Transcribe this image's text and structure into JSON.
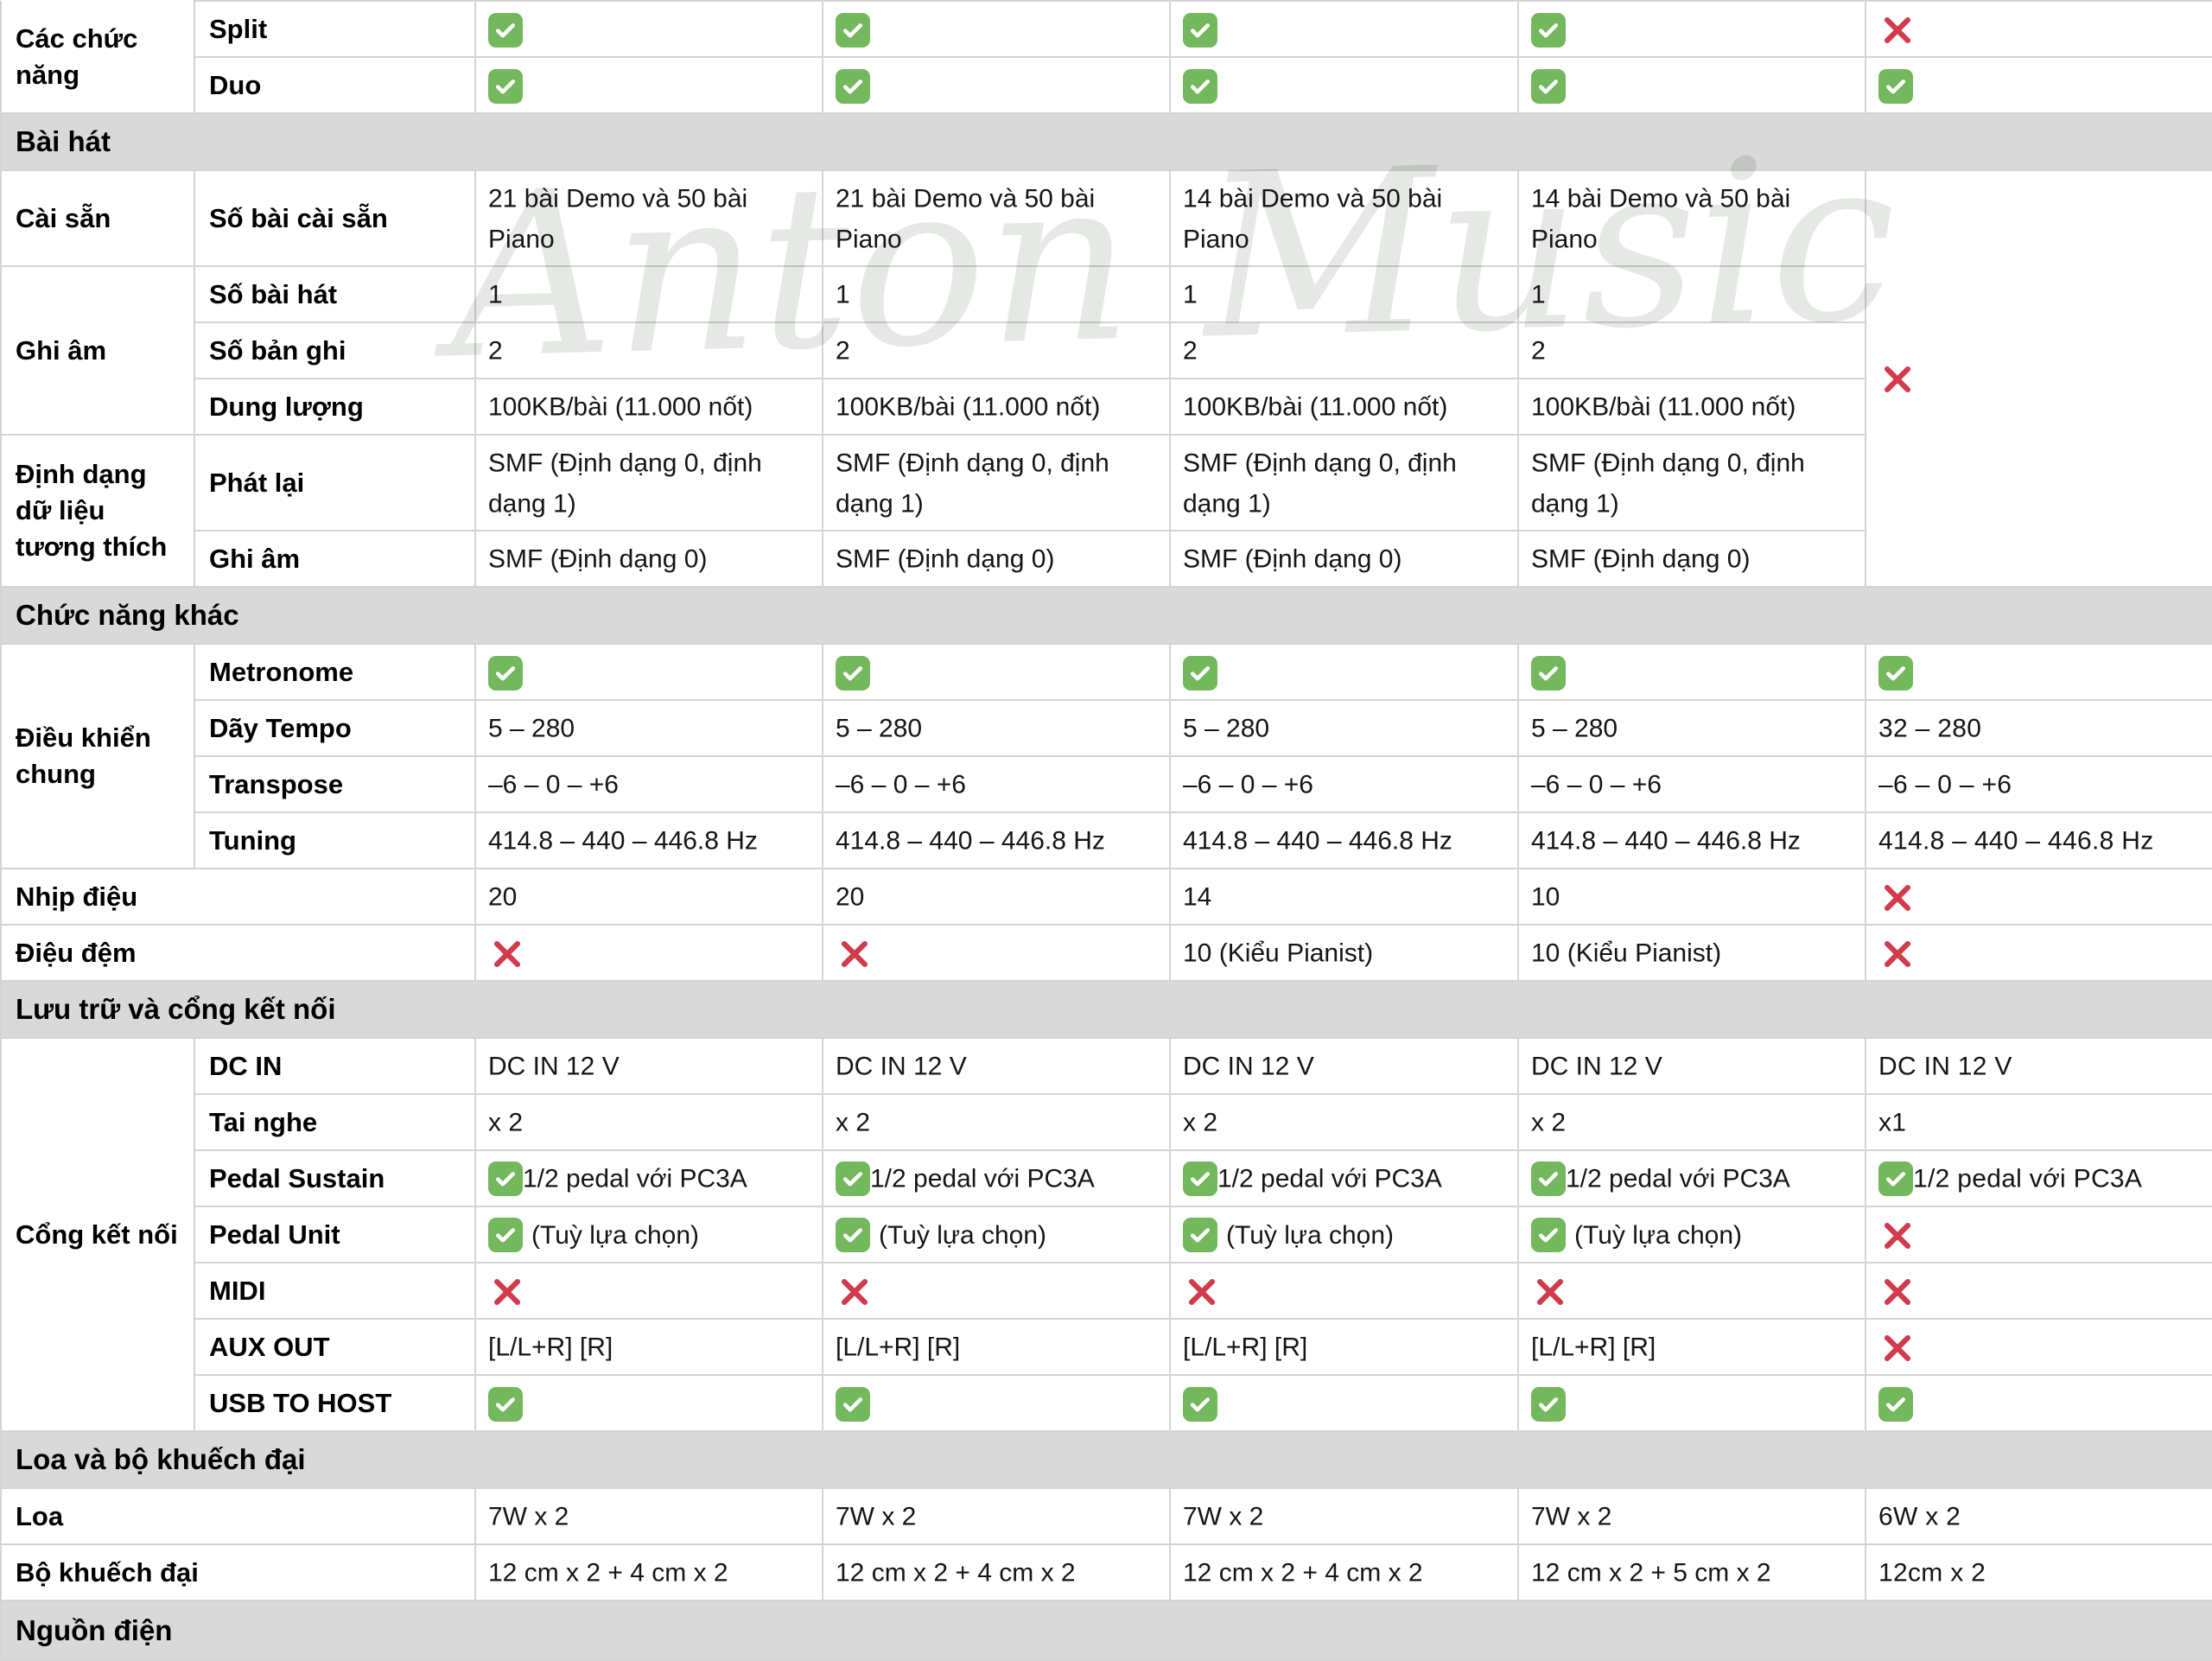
{
  "watermark": "Anton Music",
  "colors": {
    "check_green": "#74b85e",
    "cross_red": "#d23b4b",
    "section_header_bg": "#d9d9d9",
    "border": "#d4d4d4"
  },
  "icons": {
    "check": "check-icon",
    "cross": "cross-icon"
  },
  "table": {
    "rows": [
      {
        "type": "data",
        "group": {
          "label": "Các chức năng",
          "span": 2
        },
        "feature": "Split",
        "cells": [
          {
            "icon": "check"
          },
          {
            "icon": "check"
          },
          {
            "icon": "check"
          },
          {
            "icon": "check"
          },
          {
            "icon": "cross"
          }
        ]
      },
      {
        "type": "data",
        "feature": "Duo",
        "cells": [
          {
            "icon": "check"
          },
          {
            "icon": "check"
          },
          {
            "icon": "check"
          },
          {
            "icon": "check"
          },
          {
            "icon": "check"
          }
        ]
      },
      {
        "type": "section",
        "label": "Bài hát"
      },
      {
        "type": "data",
        "group": {
          "label": "Cài sẵn",
          "span": 1
        },
        "feature": "Số bài cài sẵn",
        "tall": true,
        "cells": [
          {
            "v": "21 bài Demo và 50 bài Piano"
          },
          {
            "v": "21 bài Demo và 50 bài Piano"
          },
          {
            "v": "14 bài Demo và 50 bài Piano"
          },
          {
            "v": "14 bài Demo và 50 bài Piano"
          },
          {
            "icon": "cross",
            "rowspan": 6
          }
        ]
      },
      {
        "type": "data",
        "group": {
          "label": "Ghi âm",
          "span": 3
        },
        "feature": "Số bài hát",
        "cells": [
          {
            "v": "1"
          },
          {
            "v": "1"
          },
          {
            "v": "1"
          },
          {
            "v": "1"
          }
        ]
      },
      {
        "type": "data",
        "feature": "Số bản ghi",
        "cells": [
          {
            "v": "2"
          },
          {
            "v": "2"
          },
          {
            "v": "2"
          },
          {
            "v": "2"
          }
        ]
      },
      {
        "type": "data",
        "feature": "Dung lượng",
        "cells": [
          {
            "v": "100KB/bài (11.000 nốt)"
          },
          {
            "v": "100KB/bài (11.000 nốt)"
          },
          {
            "v": "100KB/bài (11.000 nốt)"
          },
          {
            "v": "100KB/bài (11.000 nốt)"
          }
        ]
      },
      {
        "type": "data",
        "group": {
          "label": "Định dạng dữ liệu tương thích",
          "span": 2
        },
        "feature": "Phát lại",
        "tall": true,
        "cells": [
          {
            "v": "SMF (Định dạng 0, định dạng 1)"
          },
          {
            "v": "SMF (Định dạng 0, định dạng 1)"
          },
          {
            "v": "SMF (Định dạng 0, định dạng 1)"
          },
          {
            "v": "SMF (Định dạng 0, định dạng 1)"
          }
        ]
      },
      {
        "type": "data",
        "feature": "Ghi âm",
        "cells": [
          {
            "v": "SMF (Định dạng 0)"
          },
          {
            "v": "SMF (Định dạng 0)"
          },
          {
            "v": "SMF (Định dạng 0)"
          },
          {
            "v": "SMF (Định dạng 0)"
          }
        ]
      },
      {
        "type": "section",
        "label": "Chức năng khác"
      },
      {
        "type": "data",
        "group": {
          "label": "Điều khiển chung",
          "span": 4
        },
        "feature": "Metronome",
        "cells": [
          {
            "icon": "check"
          },
          {
            "icon": "check"
          },
          {
            "icon": "check"
          },
          {
            "icon": "check"
          },
          {
            "icon": "check"
          }
        ]
      },
      {
        "type": "data",
        "feature": "Dãy Tempo",
        "cells": [
          {
            "v": "5 – 280"
          },
          {
            "v": "5 – 280"
          },
          {
            "v": "5 – 280"
          },
          {
            "v": "5 – 280"
          },
          {
            "v": "32 – 280"
          }
        ]
      },
      {
        "type": "data",
        "feature": "Transpose",
        "cells": [
          {
            "v": "–6 – 0 – +6"
          },
          {
            "v": "–6 – 0 – +6"
          },
          {
            "v": "–6 – 0 – +6"
          },
          {
            "v": "–6 – 0 – +6"
          },
          {
            "v": "–6 – 0 – +6"
          }
        ]
      },
      {
        "type": "data",
        "feature": "Tuning",
        "cells": [
          {
            "v": "414.8 – 440 – 446.8 Hz"
          },
          {
            "v": "414.8 – 440 – 446.8 Hz"
          },
          {
            "v": "414.8 – 440 – 446.8 Hz"
          },
          {
            "v": "414.8 – 440 – 446.8 Hz"
          },
          {
            "v": "414.8 – 440 – 446.8 Hz"
          }
        ]
      },
      {
        "type": "data",
        "label_wide": "Nhịp điệu",
        "cells": [
          {
            "v": "20"
          },
          {
            "v": "20"
          },
          {
            "v": "14"
          },
          {
            "v": "10"
          },
          {
            "icon": "cross"
          }
        ]
      },
      {
        "type": "data",
        "label_wide": "Điệu đệm",
        "cells": [
          {
            "icon": "cross"
          },
          {
            "icon": "cross"
          },
          {
            "v": "10 (Kiểu Pianist)"
          },
          {
            "v": "10 (Kiểu Pianist)"
          },
          {
            "icon": "cross"
          }
        ]
      },
      {
        "type": "section",
        "label": "Lưu trữ và cổng kết nối"
      },
      {
        "type": "data",
        "group": {
          "label": "Cổng kết nối",
          "span": 7
        },
        "feature": "DC IN",
        "cells": [
          {
            "v": "DC IN 12 V"
          },
          {
            "v": "DC IN 12 V"
          },
          {
            "v": "DC IN 12 V"
          },
          {
            "v": "DC IN 12 V"
          },
          {
            "v": "DC IN 12 V"
          }
        ]
      },
      {
        "type": "data",
        "feature": "Tai nghe",
        "cells": [
          {
            "v": "x 2"
          },
          {
            "v": "x 2"
          },
          {
            "v": "x 2"
          },
          {
            "v": "x 2"
          },
          {
            "v": "x1"
          }
        ]
      },
      {
        "type": "data",
        "feature": "Pedal Sustain",
        "cells": [
          {
            "icon": "check",
            "v": "1/2 pedal với PC3A"
          },
          {
            "icon": "check",
            "v": "1/2 pedal với PC3A"
          },
          {
            "icon": "check",
            "v": "1/2 pedal với PC3A"
          },
          {
            "icon": "check",
            "v": "1/2 pedal với PC3A"
          },
          {
            "icon": "check",
            "v": "1/2 pedal với PC3A"
          }
        ]
      },
      {
        "type": "data",
        "feature": "Pedal Unit",
        "cells": [
          {
            "icon": "check",
            "v": "(Tuỳ lựa chọn)",
            "gap": true
          },
          {
            "icon": "check",
            "v": "(Tuỳ lựa chọn)",
            "gap": true
          },
          {
            "icon": "check",
            "v": "(Tuỳ lựa chọn)",
            "gap": true
          },
          {
            "icon": "check",
            "v": "(Tuỳ lựa chọn)",
            "gap": true
          },
          {
            "icon": "cross"
          }
        ]
      },
      {
        "type": "data",
        "feature": "MIDI",
        "cells": [
          {
            "icon": "cross"
          },
          {
            "icon": "cross"
          },
          {
            "icon": "cross"
          },
          {
            "icon": "cross"
          },
          {
            "icon": "cross"
          }
        ]
      },
      {
        "type": "data",
        "feature": "AUX OUT",
        "cells": [
          {
            "v": "[L/L+R] [R]"
          },
          {
            "v": "[L/L+R] [R]"
          },
          {
            "v": "[L/L+R] [R]"
          },
          {
            "v": "[L/L+R] [R]"
          },
          {
            "icon": "cross"
          }
        ]
      },
      {
        "type": "data",
        "feature": "USB TO HOST",
        "cells": [
          {
            "icon": "check"
          },
          {
            "icon": "check"
          },
          {
            "icon": "check"
          },
          {
            "icon": "check"
          },
          {
            "icon": "check"
          }
        ]
      },
      {
        "type": "section",
        "label": "Loa và bộ khuếch đại"
      },
      {
        "type": "data",
        "label_wide": "Loa",
        "cells": [
          {
            "v": "7W x 2"
          },
          {
            "v": "7W x 2"
          },
          {
            "v": "7W x 2"
          },
          {
            "v": "7W x 2"
          },
          {
            "v": "6W x 2"
          }
        ]
      },
      {
        "type": "data",
        "label_wide": "Bộ khuếch đại",
        "cells": [
          {
            "v": "12 cm x 2 + 4 cm x 2"
          },
          {
            "v": "12 cm x 2 + 4 cm x 2"
          },
          {
            "v": "12 cm x 2 + 4 cm x 2"
          },
          {
            "v": "12 cm x 2 + 5 cm x 2"
          },
          {
            "v": "12cm x 2"
          }
        ]
      },
      {
        "type": "section",
        "label": "Nguồn điện"
      }
    ]
  }
}
